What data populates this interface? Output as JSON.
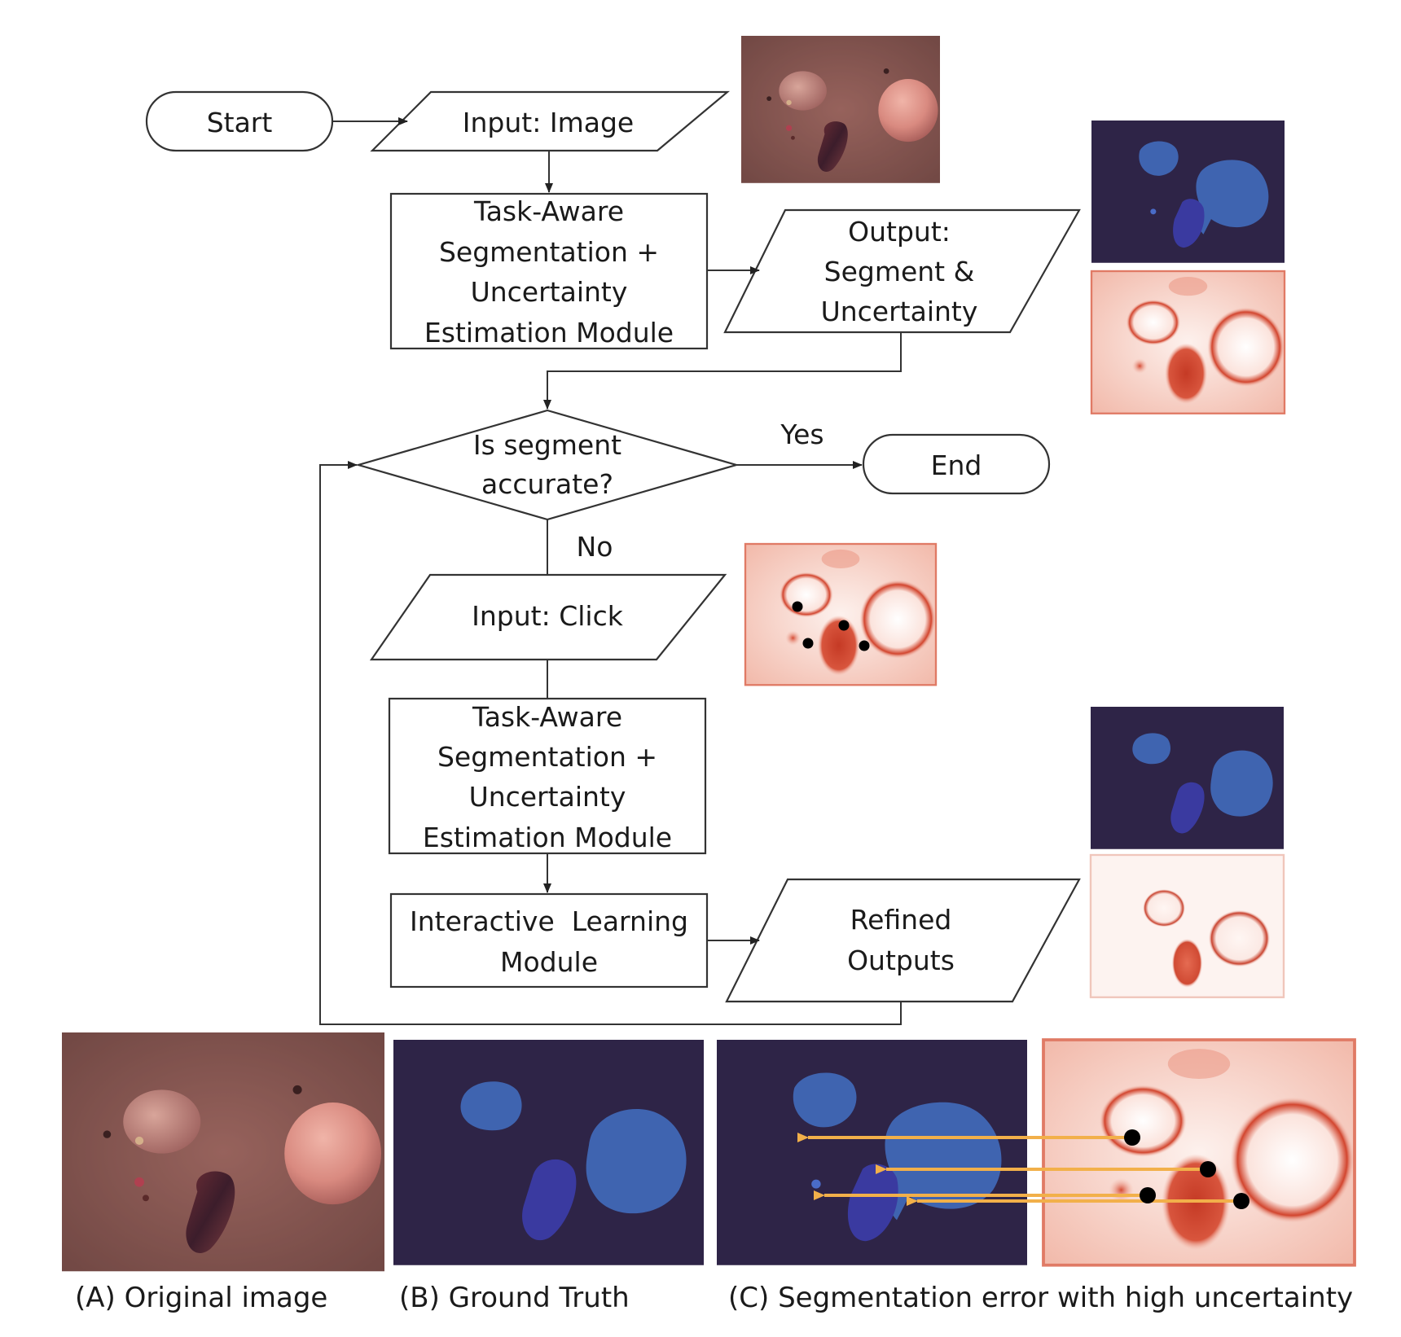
{
  "flowchart": {
    "start": "Start",
    "input_image": "Input: Image",
    "module1": [
      "Task-Aware",
      "Segmentation +",
      "Uncertainty",
      "Estimation Module"
    ],
    "output1": [
      "Output:",
      "Segment &",
      "Uncertainty"
    ],
    "decision": [
      "Is segment",
      "accurate?"
    ],
    "yes": "Yes",
    "no": "No",
    "end": "End",
    "input_click": "Input: Click",
    "module2": [
      "Task-Aware",
      "Segmentation +",
      "Uncertainty",
      "Estimation Module"
    ],
    "interactive": [
      "Interactive  Learning",
      "Module"
    ],
    "refined": [
      "Refined",
      "Outputs"
    ]
  },
  "captions": {
    "a": "(A) Original image",
    "b": "(B) Ground Truth",
    "c": "(C) Segmentation error with high uncertainty"
  },
  "colors": {
    "mask_background": "#2e2447",
    "mask_lesion": "#3f64b0",
    "mask_lesion_dark": "#3a3aa0",
    "uncertainty_low": "#fbe9e4",
    "uncertainty_high": "#d2452e",
    "skin": "#8a5550",
    "arrow_correction": "#f2b04a",
    "click_point": "#000000"
  }
}
